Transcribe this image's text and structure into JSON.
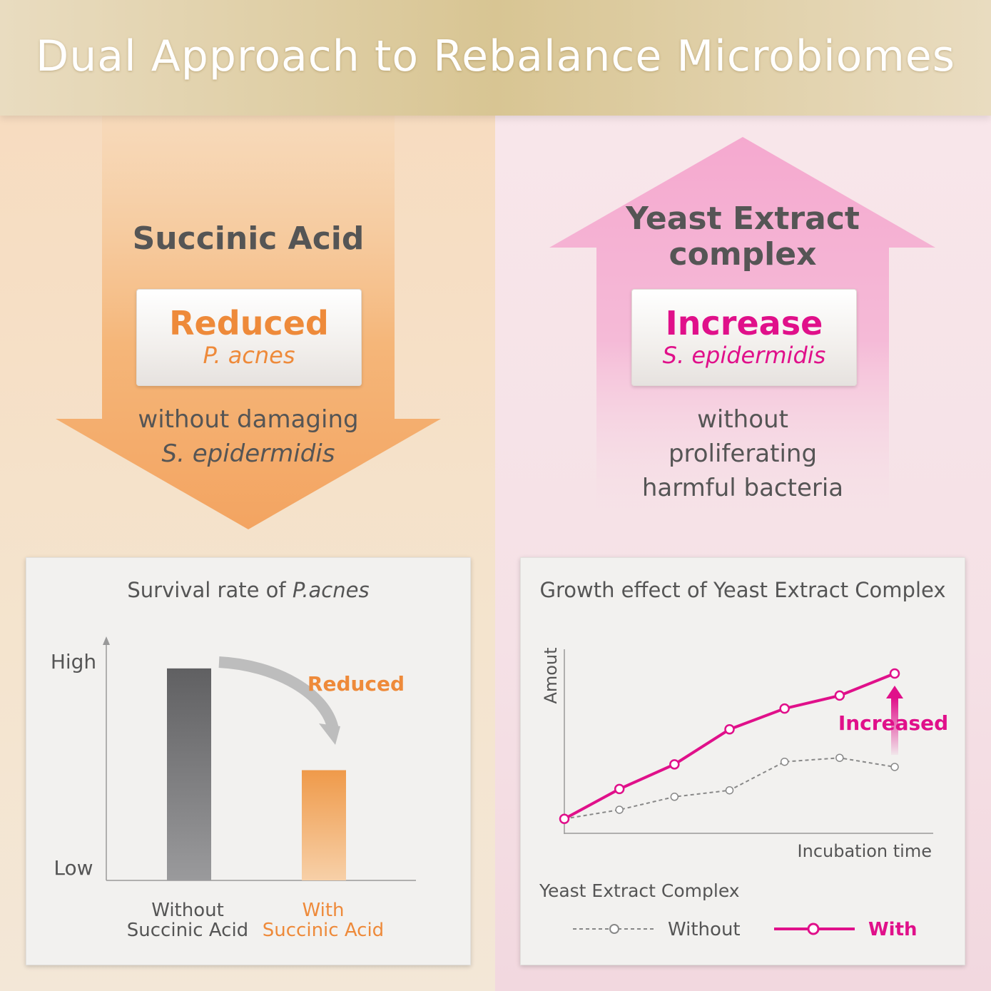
{
  "header": {
    "title": "Dual Approach to Rebalance Microbiomes"
  },
  "colors": {
    "orange": "#ee8a3a",
    "magenta": "#e0108a",
    "gray_text": "#555555"
  },
  "left": {
    "ingredient": "Succinic Acid",
    "effect": "Reduced",
    "effect_target": "P. acnes",
    "note_line1": "without damaging",
    "note_line2": "S. epidermidis"
  },
  "right": {
    "ingredient_line1": "Yeast Extract",
    "ingredient_line2": "complex",
    "effect": "Increase",
    "effect_target": "S. epidermidis",
    "note_line1": "without",
    "note_line2": "proliferating",
    "note_line3": "harmful bacteria"
  },
  "chart_data": [
    {
      "type": "bar",
      "title_prefix": "Survival rate of ",
      "title_italic": "P.acnes",
      "ylabel_high": "High",
      "ylabel_low": "Low",
      "annotation": "Reduced",
      "categories": [
        {
          "line1": "Without",
          "line2": "Succinic Acid"
        },
        {
          "line1": "With",
          "line2": "Succinic Acid"
        }
      ],
      "values": [
        100,
        52
      ],
      "ylim": [
        0,
        105
      ]
    },
    {
      "type": "line",
      "title": "Growth effect of Yeast Extract Complex",
      "xlabel": "Incubation time",
      "ylabel": "Amout",
      "annotation": "Increased",
      "legend_title": "Yeast Extract Complex",
      "x": [
        0,
        1,
        2,
        3,
        4,
        5,
        6
      ],
      "ylim": [
        0,
        10
      ],
      "series": [
        {
          "name": "Without",
          "style": "dashed",
          "values": [
            0.4,
            1.1,
            2.1,
            2.6,
            4.8,
            5.1,
            4.4
          ]
        },
        {
          "name": "With",
          "style": "solid",
          "values": [
            0.4,
            2.7,
            4.6,
            7.3,
            8.9,
            9.9,
            11.6
          ]
        }
      ]
    }
  ]
}
